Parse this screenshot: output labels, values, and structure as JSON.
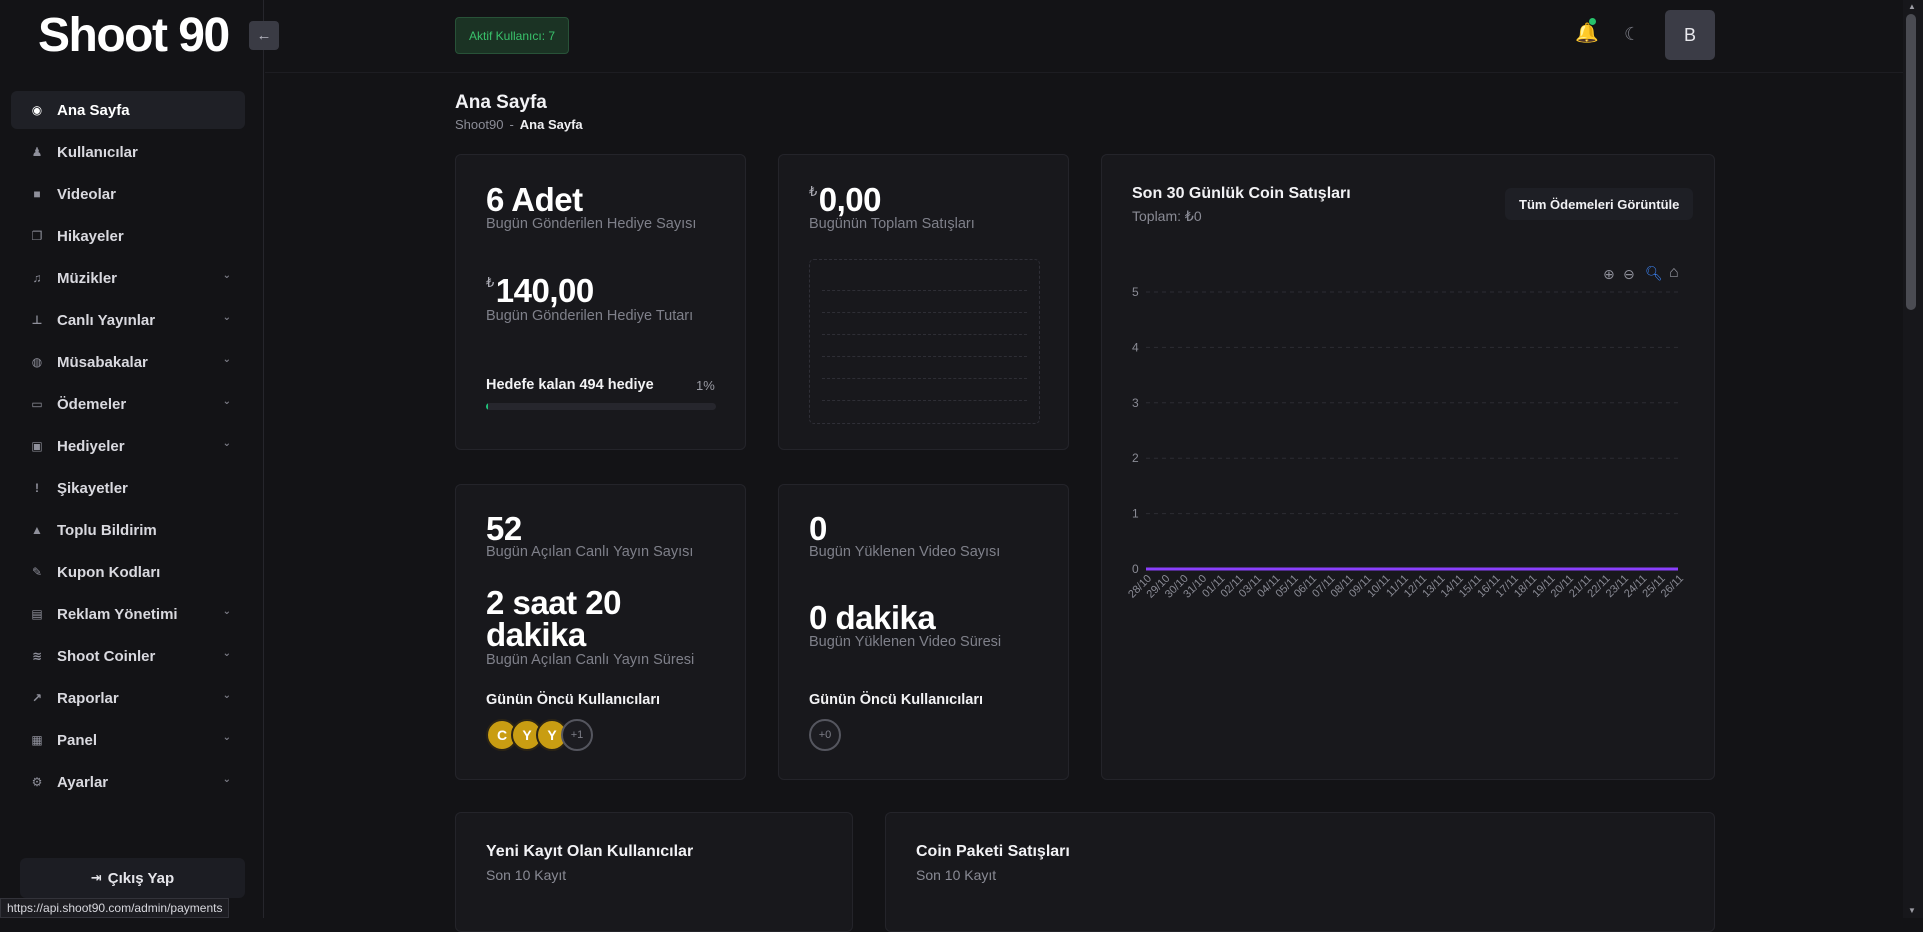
{
  "sidebar": {
    "logo": "Shoot 90",
    "collapse_icon": "←",
    "items": [
      {
        "label": "Ana Sayfa",
        "icon": "◉",
        "chevron": false,
        "active": true
      },
      {
        "label": "Kullanıcılar",
        "icon": "♟",
        "chevron": false
      },
      {
        "label": "Videolar",
        "icon": "■",
        "chevron": false
      },
      {
        "label": "Hikayeler",
        "icon": "❐",
        "chevron": false
      },
      {
        "label": "Müzikler",
        "icon": "♫",
        "chevron": true
      },
      {
        "label": "Canlı Yayınlar",
        "icon": "⊥",
        "chevron": true
      },
      {
        "label": "Müsabakalar",
        "icon": "◍",
        "chevron": true
      },
      {
        "label": "Ödemeler",
        "icon": "▭",
        "chevron": true
      },
      {
        "label": "Hediyeler",
        "icon": "▣",
        "chevron": true
      },
      {
        "label": "Şikayetler",
        "icon": "!",
        "chevron": false
      },
      {
        "label": "Toplu Bildirim",
        "icon": "▲",
        "chevron": false
      },
      {
        "label": "Kupon Kodları",
        "icon": "✎",
        "chevron": false
      },
      {
        "label": "Reklam Yönetimi",
        "icon": "▤",
        "chevron": true
      },
      {
        "label": "Shoot Coinler",
        "icon": "≋",
        "chevron": true
      },
      {
        "label": "Raporlar",
        "icon": "↗",
        "chevron": true
      },
      {
        "label": "Panel",
        "icon": "▦",
        "chevron": true
      },
      {
        "label": "Ayarlar",
        "icon": "⚙",
        "chevron": true
      }
    ],
    "logout_label": "Çıkış Yap",
    "logout_icon": "⇥"
  },
  "header": {
    "active_users": "Aktif Kullanıcı: 7",
    "bell_icon": "🔔",
    "moon_icon": "☾",
    "avatar": "B"
  },
  "page": {
    "title": "Ana Sayfa",
    "breadcrumb_root": "Shoot90",
    "breadcrumb_sep": "-",
    "breadcrumb_current": "Ana Sayfa"
  },
  "cards": {
    "gifts": {
      "count": "6 Adet",
      "count_label": "Bugün Gönderilen Hediye Sayısı",
      "currency": "₺",
      "amount": "140,00",
      "amount_label": "Bugün Gönderilen Hediye Tutarı",
      "goal_label": "Hedefe kalan 494 hediye",
      "goal_pct": "1%",
      "goal_progress": 0.01
    },
    "sales": {
      "currency": "₺",
      "amount": "0,00",
      "label": "Bugünün Toplam Satışları"
    },
    "live": {
      "count": "52",
      "count_label": "Bugün Açılan Canlı Yayın Sayısı",
      "duration_line1": "2 saat 20",
      "duration_line2": "dakika",
      "duration_label": "Bugün Açılan Canlı Yayın Süresi",
      "top_users_label": "Günün Öncü Kullanıcıları",
      "avatars": [
        "C",
        "Y",
        "Y"
      ],
      "more": "+1"
    },
    "video": {
      "count": "0",
      "count_label": "Bugün Yüklenen Video Sayısı",
      "duration": "0 dakika",
      "duration_label": "Bugün Yüklenen Video Süresi",
      "top_users_label": "Günün Öncü Kullanıcıları",
      "more": "+0"
    }
  },
  "coin_chart": {
    "title": "Son 30 Günlük Coin Satışları",
    "subtitle": "Toplam: ₺0",
    "button": "Tüm Ödemeleri Görüntüle",
    "tool_icons": [
      "zoom-in-icon",
      "zoom-out-icon",
      "zoom-icon",
      "home-icon"
    ]
  },
  "chart_data": {
    "type": "line",
    "title": "Son 30 Günlük Coin Satışları",
    "subtitle": "Toplam: ₺0",
    "x": [
      "28/10",
      "29/10",
      "30/10",
      "31/10",
      "01/11",
      "02/11",
      "03/11",
      "04/11",
      "05/11",
      "06/11",
      "07/11",
      "08/11",
      "09/11",
      "10/11",
      "11/11",
      "12/11",
      "13/11",
      "14/11",
      "15/11",
      "16/11",
      "17/11",
      "18/11",
      "19/11",
      "20/11",
      "21/11",
      "22/11",
      "23/11",
      "24/11",
      "25/11",
      "26/11"
    ],
    "series": [
      {
        "values": [
          0,
          0,
          0,
          0,
          0,
          0,
          0,
          0,
          0,
          0,
          0,
          0,
          0,
          0,
          0,
          0,
          0,
          0,
          0,
          0,
          0,
          0,
          0,
          0,
          0,
          0,
          0,
          0,
          0,
          0
        ],
        "color": "#8a3ffc"
      }
    ],
    "yticks": [
      0,
      1,
      2,
      3,
      4,
      5
    ],
    "ylim": [
      0,
      5
    ],
    "grid": true,
    "legend": "none"
  },
  "bottom": {
    "new_users_title": "Yeni Kayıt Olan Kullanıcılar",
    "new_users_sub": "Son 10 Kayıt",
    "coin_packages_title": "Coin Paketi Satışları",
    "coin_packages_sub": "Son 10 Kayıt"
  },
  "status_url": "https://api.shoot90.com/admin/payments",
  "colors": {
    "accent_green": "#20c27a",
    "chart_line": "#8a3ffc",
    "zoom_blue": "#3c84f6"
  }
}
